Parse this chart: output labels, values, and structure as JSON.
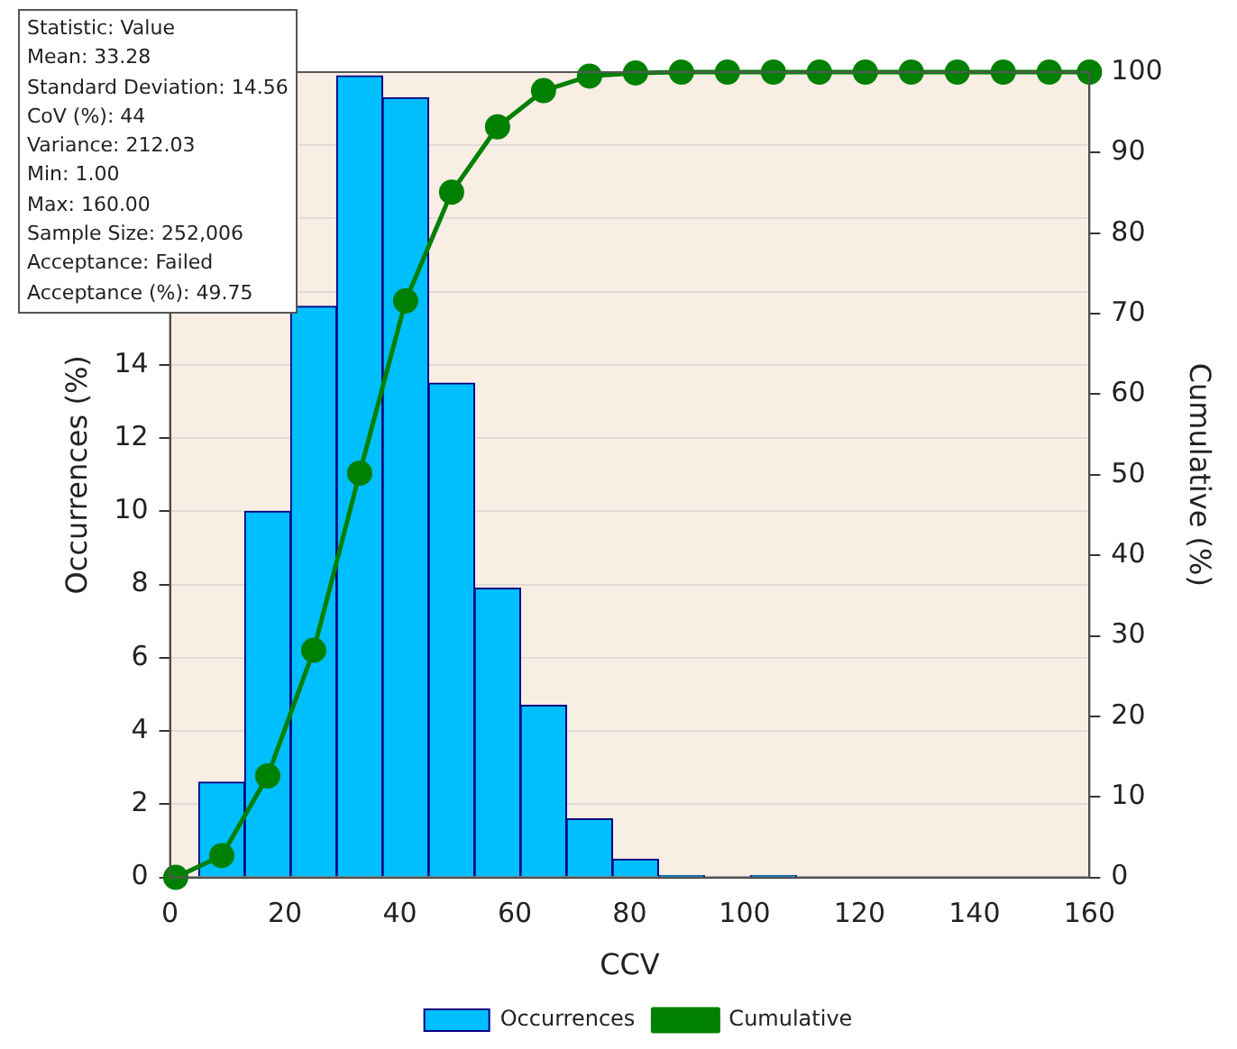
{
  "chart_data": {
    "type": "histogram",
    "xlabel": "CCV",
    "ylabel": "Occurrences (%)",
    "y2label": "Cumulative (%)",
    "annotations": [
      "Statistic: Value",
      "Mean: 33.28",
      "Standard Deviation: 14.56",
      "CoV (%): 44",
      "Variance: 212.03",
      "Min: 1.00",
      "Max: 160.00",
      "Sample Size: 252,006",
      "Acceptance: Failed",
      "Acceptance (%): 49.75"
    ],
    "bins": [
      5,
      13,
      21,
      29,
      37,
      45,
      53,
      61,
      69,
      77,
      85,
      93,
      101,
      109
    ],
    "series": [
      {
        "name": "Cumulative",
        "type": "line",
        "axis": "y2",
        "color": "#008000",
        "x": [
          1,
          9,
          17,
          25,
          33,
          41,
          49,
          57,
          65,
          73,
          81,
          89,
          97,
          105,
          113,
          121,
          129,
          137,
          145,
          153,
          160
        ],
        "values": [
          0,
          2.7,
          12.6,
          28.2,
          50.2,
          71.6,
          85.1,
          93.2,
          97.7,
          99.5,
          99.9,
          100,
          100,
          100,
          100,
          100,
          100,
          100,
          100,
          100,
          100
        ]
      },
      {
        "name": "Occurrences",
        "color": "#00bfff",
        "values": [
          2.6,
          10.0,
          15.6,
          21.9,
          21.3,
          13.5,
          7.9,
          4.7,
          1.6,
          0.5,
          0.05,
          0,
          0.05
        ]
      }
    ],
    "xlim": [
      0,
      160
    ],
    "xticks": [
      0,
      20,
      40,
      60,
      80,
      100,
      120,
      140,
      160
    ],
    "ylim": [
      0,
      22
    ],
    "yticks": [
      0,
      2,
      4,
      6,
      8,
      10,
      12,
      14,
      {
        "value": 16,
        "label": null
      },
      {
        "value": 18,
        "label": null
      },
      {
        "value": 20,
        "label": null
      },
      {
        "value": 22,
        "label": null
      }
    ],
    "y2lim": [
      0,
      100
    ],
    "y2ticks": [
      0,
      10,
      20,
      30,
      40,
      50,
      60,
      70,
      80,
      90,
      100
    ],
    "grid": "y",
    "legend": "bottom",
    "marker": "circle",
    "line_style": "solid"
  }
}
